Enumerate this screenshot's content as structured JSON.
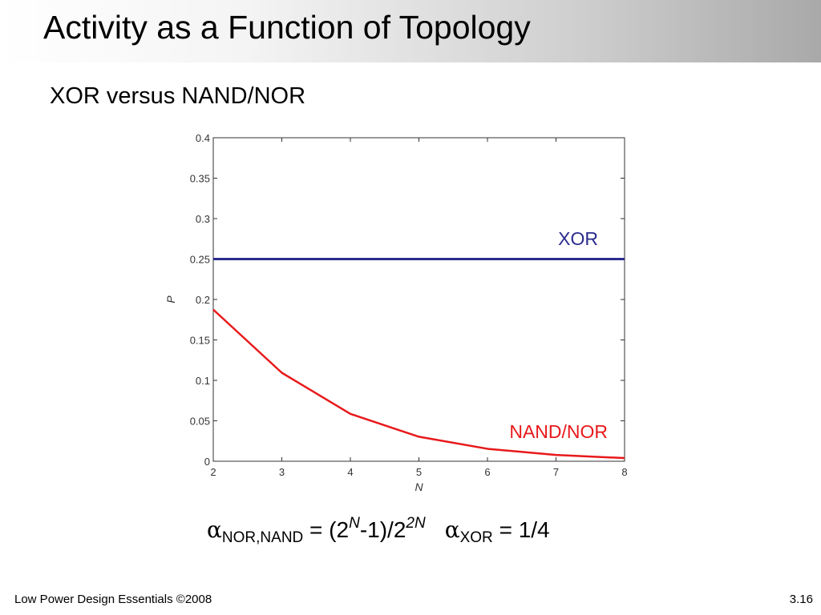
{
  "slide": {
    "title": "Activity as a Function of Topology",
    "subtitle": "XOR versus NAND/NOR",
    "footer_left": "Low Power Design Essentials ©2008",
    "footer_right": "3.16"
  },
  "formula": {
    "alpha": "α",
    "nor_sub": "NOR,NAND",
    "eq1_a": " = (2",
    "eq1_sup1": "N",
    "eq1_b": "-1)/2",
    "eq1_sup2": "2N",
    "xor_sub": "XOR",
    "eq2": " = 1/4"
  },
  "chart_data": {
    "type": "line",
    "xlabel": "N",
    "ylabel": "P",
    "xlim": [
      2,
      8
    ],
    "ylim": [
      0,
      0.4
    ],
    "xticks": [
      2,
      3,
      4,
      5,
      6,
      7,
      8
    ],
    "yticks": [
      0,
      0.05,
      0.1,
      0.15,
      0.2,
      0.25,
      0.3,
      0.35,
      0.4
    ],
    "ytick_labels": [
      "0",
      "0.05",
      "0.1",
      "0.15",
      "0.2",
      "0.25",
      "0.3",
      "0.35",
      "0.4"
    ],
    "grid": false,
    "series": [
      {
        "name": "XOR",
        "color": "#2b2b8f",
        "x": [
          2,
          3,
          4,
          5,
          6,
          7,
          8
        ],
        "values": [
          0.25,
          0.25,
          0.25,
          0.25,
          0.25,
          0.25,
          0.25
        ]
      },
      {
        "name": "NAND/NOR",
        "color": "#e8191b",
        "x": [
          2,
          3,
          4,
          5,
          6,
          7,
          8
        ],
        "values": [
          0.1875,
          0.1094,
          0.0586,
          0.0303,
          0.0154,
          0.0078,
          0.0039
        ]
      }
    ]
  }
}
